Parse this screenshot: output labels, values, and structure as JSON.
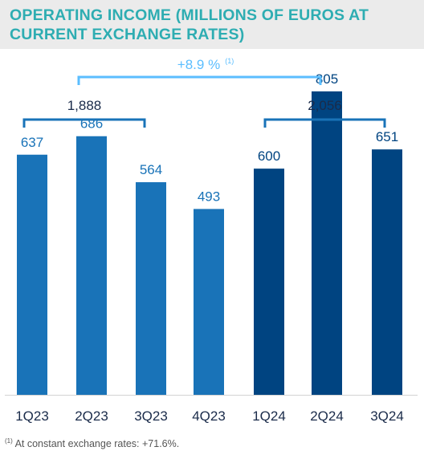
{
  "title": "OPERATING INCOME (MILLIONS OF EUROS AT CURRENT EXCHANGE RATES)",
  "colors": {
    "title": "#2eadb2",
    "bar_2023": "#1973b8",
    "bar_2024": "#004481",
    "growth_bracket": "#5bbeff",
    "total_bracket": "#1973b8",
    "total_text": "#1a2b4a",
    "label_2023": "#1973b8",
    "label_2024": "#004481",
    "axis_text": "#1a2b4a",
    "baseline": "#d3d3d3"
  },
  "chart_data": {
    "type": "bar",
    "categories": [
      "1Q23",
      "2Q23",
      "3Q23",
      "4Q23",
      "1Q24",
      "2Q24",
      "3Q24"
    ],
    "values": [
      637,
      686,
      564,
      493,
      600,
      805,
      651
    ],
    "value_labels": [
      "637",
      "686",
      "564",
      "493",
      "600",
      "805",
      "651"
    ],
    "ylim": [
      0,
      860
    ],
    "groups": [
      {
        "categories": [
          "1Q23",
          "2Q23",
          "3Q23"
        ],
        "total_label": "1,888",
        "color": "#1973b8"
      },
      {
        "categories": [
          "1Q24",
          "2Q24",
          "3Q24"
        ],
        "total_label": "2,056",
        "color": "#004481"
      }
    ],
    "growth": {
      "label": "+8.9 %",
      "note_marker": "(1)"
    }
  },
  "footnote": {
    "marker": "(1)",
    "text": " At constant exchange rates: +71.6%."
  }
}
